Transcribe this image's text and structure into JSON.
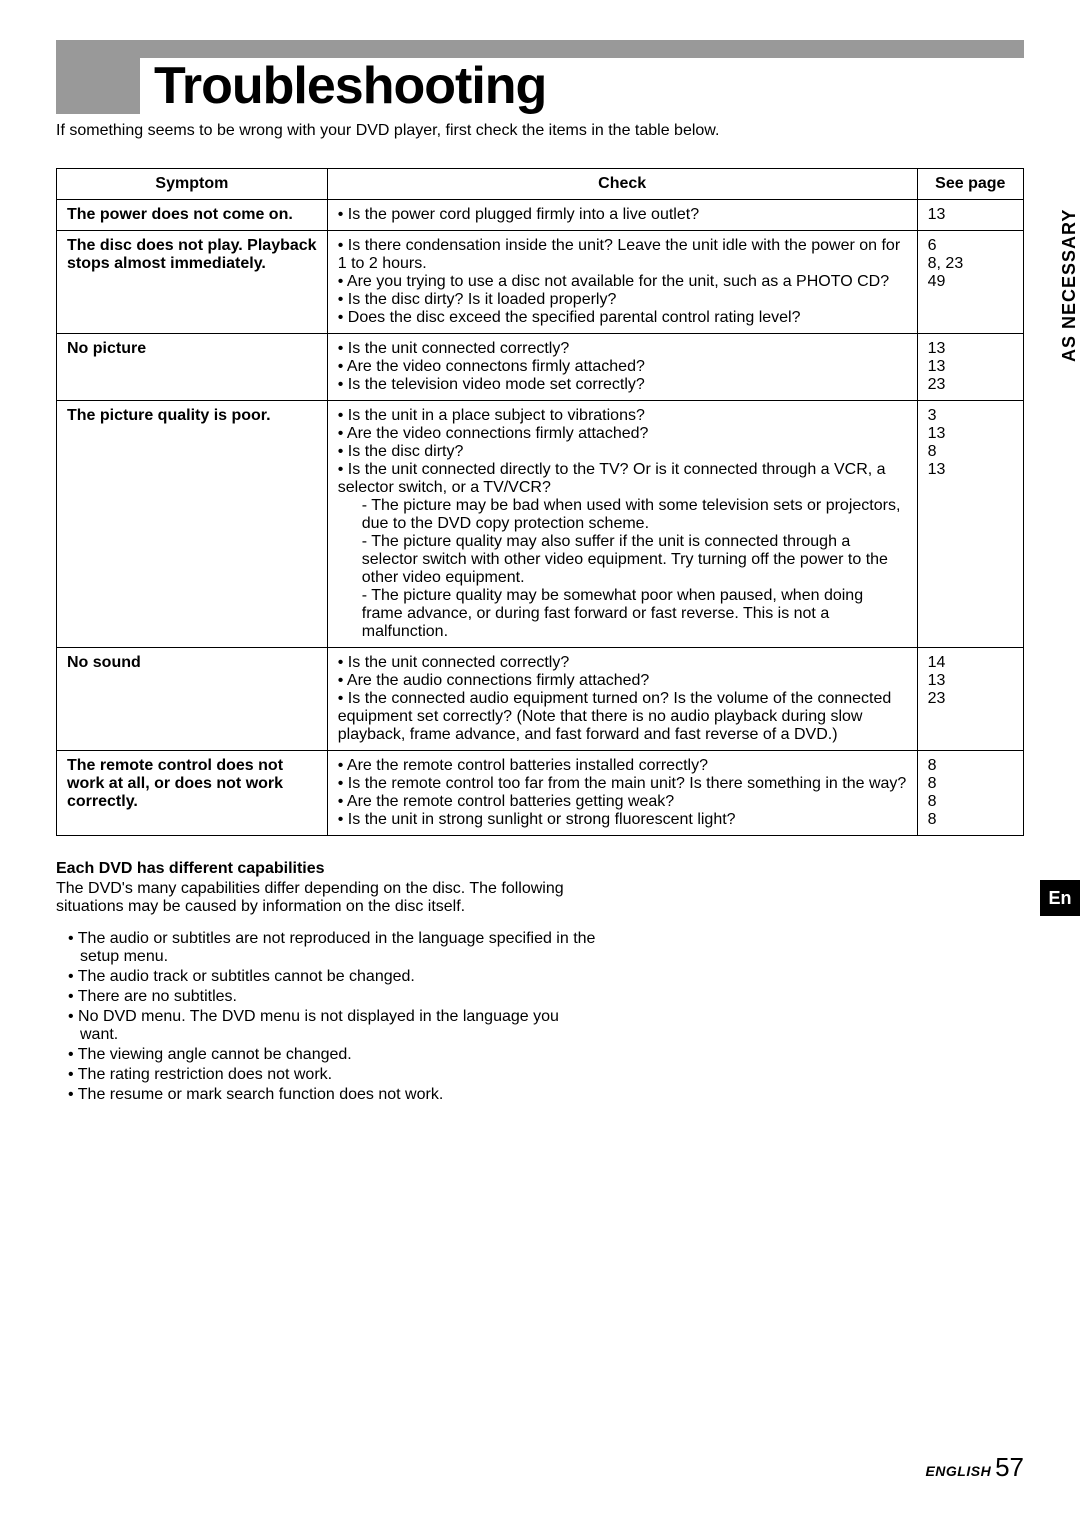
{
  "title": "Troubleshooting",
  "intro": "If something seems to be wrong with your DVD player, first check the items in the table below.",
  "side_tab": "AS NECESSARY",
  "en_tab": "En",
  "footer_lang": "ENGLISH",
  "footer_page": "57",
  "table": {
    "headers": {
      "symptom": "Symptom",
      "check": "Check",
      "page": "See page"
    },
    "rows": [
      {
        "symptom": "The power does not come on.",
        "checks": [
          "• Is the power cord plugged firmly into a live outlet?"
        ],
        "pages": [
          "13"
        ]
      },
      {
        "symptom": "The disc does not play. Playback stops almost immediately.",
        "checks": [
          "• Is there condensation inside the unit? Leave the unit idle with the power on for 1 to 2 hours.",
          "• Are you trying to use a disc not available for the unit, such as a PHOTO CD?",
          "• Is the disc dirty? Is it loaded properly?",
          "• Does the disc exceed the specified parental control rating level?"
        ],
        "pages": [
          "",
          "6",
          "8, 23",
          "49"
        ]
      },
      {
        "symptom": "No picture",
        "checks": [
          "• Is the unit connected correctly?",
          "• Are the video connectons firmly attached?",
          "• Is the television video mode set correctly?"
        ],
        "pages": [
          "13",
          "13",
          "23"
        ]
      },
      {
        "symptom": "The picture quality is poor.",
        "checks": [
          "• Is the unit in a place subject to vibrations?",
          "• Are the video connections firmly attached?",
          "• Is the disc dirty?",
          "• Is the unit connected directly to the TV? Or is it connected through a VCR, a selector switch, or a TV/VCR?"
        ],
        "subnotes": [
          "- The picture may be bad when used with some television sets or projectors, due to the DVD copy protection scheme.",
          "- The picture quality may also suffer if the unit is connected through a selector switch with other video equipment. Try turning off the power to the other video equipment.",
          "- The picture quality may be somewhat poor when paused, when doing frame advance, or during fast forward or fast reverse. This is not a malfunction."
        ],
        "pages": [
          "3",
          "13",
          "8",
          "13"
        ]
      },
      {
        "symptom": "No sound",
        "checks": [
          "• Is the unit connected correctly?",
          "• Are the audio connections firmly attached?",
          "• Is the connected audio equipment turned on? Is the volume of the connected equipment set correctly? (Note that there is no audio playback during slow playback, frame advance, and fast forward and fast reverse of a DVD.)"
        ],
        "pages": [
          "14",
          "13",
          "23"
        ]
      },
      {
        "symptom": "The remote control does not work at all, or does not work correctly.",
        "checks": [
          "• Are the remote control batteries installed correctly?",
          "• Is the remote control too far from the main unit? Is there something in the way?",
          "• Are the remote control batteries getting weak?",
          "• Is the unit in strong sunlight or strong fluorescent light?"
        ],
        "pages": [
          "8",
          "8",
          "8",
          "8"
        ]
      }
    ]
  },
  "notes": {
    "heading": "Each DVD has different capabilities",
    "intro": "The DVD's many capabilities differ depending on the disc. The following situations may be caused by information on the disc itself.",
    "items": [
      "The audio or subtitles are not reproduced in the language specified in the setup menu.",
      "The audio track or subtitles cannot be changed.",
      "There are no subtitles.",
      "No DVD menu. The DVD menu is not displayed in the language you want.",
      "The viewing angle cannot be changed.",
      "The rating restriction does not work.",
      "The resume or mark search function does not work."
    ]
  }
}
